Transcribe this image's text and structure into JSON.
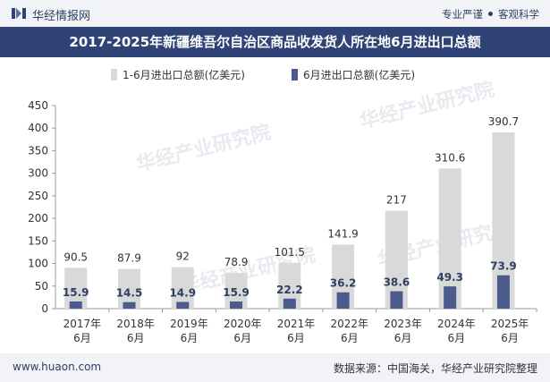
{
  "header": {
    "brand": "华经情报网",
    "tag1": "专业严谨",
    "tag2": "客观科学"
  },
  "watermark": "华经产业研究院",
  "chart_data": {
    "type": "bar",
    "title": "2017-2025年新疆维吾尔自治区商品收发货人所在地6月进出口总额",
    "categories": [
      [
        "2017年",
        "6月"
      ],
      [
        "2018年",
        "6月"
      ],
      [
        "2019年",
        "6月"
      ],
      [
        "2020年",
        "6月"
      ],
      [
        "2021年",
        "6月"
      ],
      [
        "2022年",
        "6月"
      ],
      [
        "2023年",
        "6月"
      ],
      [
        "2024年",
        "6月"
      ],
      [
        "2025年",
        "6月"
      ]
    ],
    "series": [
      {
        "name": "1-6月进出口总额(亿美元)",
        "color": "#d9d9d9",
        "values": [
          90.5,
          87.9,
          92,
          78.9,
          101.5,
          141.9,
          217,
          310.6,
          390.7
        ],
        "labels": [
          "90.5",
          "87.9",
          "92",
          "78.9",
          "101.5",
          "141.9",
          "217",
          "310.6",
          "390.7"
        ]
      },
      {
        "name": "6月进出口总额(亿美元)",
        "color": "#4a5b8c",
        "values": [
          15.9,
          14.5,
          14.9,
          15.9,
          22.2,
          36.2,
          38.6,
          49.3,
          73.9
        ],
        "labels": [
          "15.9",
          "14.5",
          "14.9",
          "15.9",
          "22.2",
          "36.2",
          "38.6",
          "49.3",
          "73.9"
        ]
      }
    ],
    "ylim": [
      0,
      450
    ],
    "yticks": [
      "0",
      "50",
      "100",
      "150",
      "200",
      "250",
      "300",
      "350",
      "400",
      "450"
    ],
    "grid": false,
    "legend_position": "top-center"
  },
  "footer": {
    "url": "www.huaon.com",
    "source": "数据来源：中国海关，华经产业研究院整理"
  }
}
